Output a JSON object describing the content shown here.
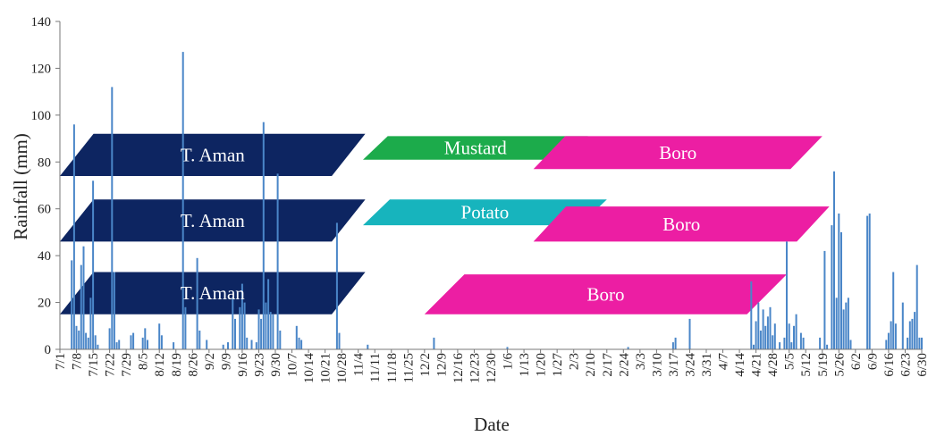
{
  "chart_data": {
    "type": "bar",
    "xlabel": "Date",
    "ylabel": "Rainfall (mm)",
    "ylim": [
      0,
      140
    ],
    "yticks": [
      0,
      20,
      40,
      60,
      80,
      100,
      120,
      140
    ],
    "grid": false,
    "x_tick_labels": [
      "7/1",
      "7/8",
      "7/15",
      "7/22",
      "7/29",
      "8/5",
      "8/12",
      "8/19",
      "8/26",
      "9/2",
      "9/9",
      "9/16",
      "9/23",
      "9/30",
      "10/7",
      "10/14",
      "10/21",
      "10/28",
      "11/4",
      "11/11",
      "11/18",
      "11/25",
      "12/2",
      "12/9",
      "12/16",
      "12/23",
      "12/30",
      "1/6",
      "1/13",
      "1/20",
      "1/27",
      "2/3",
      "2/10",
      "2/17",
      "2/24",
      "3/3",
      "3/10",
      "3/17",
      "3/24",
      "3/31",
      "4/7",
      "4/14",
      "4/21",
      "4/28",
      "5/5",
      "5/12",
      "5/19",
      "5/26",
      "6/2",
      "6/9",
      "6/16",
      "6/23",
      "6/30"
    ],
    "bar_color": "#4a86c8",
    "series": [
      {
        "values": [
          {
            "x": "7/6",
            "y": 38
          },
          {
            "x": "7/7",
            "y": 96
          },
          {
            "x": "7/8",
            "y": 10
          },
          {
            "x": "7/9",
            "y": 8
          },
          {
            "x": "7/10",
            "y": 36
          },
          {
            "x": "7/11",
            "y": 44
          },
          {
            "x": "7/12",
            "y": 7
          },
          {
            "x": "7/13",
            "y": 5
          },
          {
            "x": "7/14",
            "y": 22
          },
          {
            "x": "7/15",
            "y": 72
          },
          {
            "x": "7/16",
            "y": 6
          },
          {
            "x": "7/17",
            "y": 2
          },
          {
            "x": "7/22",
            "y": 9
          },
          {
            "x": "7/23",
            "y": 112
          },
          {
            "x": "7/24",
            "y": 33
          },
          {
            "x": "7/25",
            "y": 3
          },
          {
            "x": "7/26",
            "y": 4
          },
          {
            "x": "7/31",
            "y": 6
          },
          {
            "x": "8/1",
            "y": 7
          },
          {
            "x": "8/5",
            "y": 5
          },
          {
            "x": "8/6",
            "y": 9
          },
          {
            "x": "8/7",
            "y": 4
          },
          {
            "x": "8/12",
            "y": 11
          },
          {
            "x": "8/13",
            "y": 6
          },
          {
            "x": "8/18",
            "y": 3
          },
          {
            "x": "8/22",
            "y": 127
          },
          {
            "x": "8/23",
            "y": 18
          },
          {
            "x": "8/28",
            "y": 39
          },
          {
            "x": "8/29",
            "y": 8
          },
          {
            "x": "9/1",
            "y": 4
          },
          {
            "x": "9/8",
            "y": 2
          },
          {
            "x": "9/10",
            "y": 3
          },
          {
            "x": "9/12",
            "y": 22
          },
          {
            "x": "9/13",
            "y": 13
          },
          {
            "x": "9/15",
            "y": 18
          },
          {
            "x": "9/16",
            "y": 28
          },
          {
            "x": "9/17",
            "y": 20
          },
          {
            "x": "9/18",
            "y": 5
          },
          {
            "x": "9/20",
            "y": 4
          },
          {
            "x": "9/22",
            "y": 3
          },
          {
            "x": "9/23",
            "y": 17
          },
          {
            "x": "9/24",
            "y": 13
          },
          {
            "x": "9/25",
            "y": 97
          },
          {
            "x": "9/26",
            "y": 20
          },
          {
            "x": "9/27",
            "y": 30
          },
          {
            "x": "9/28",
            "y": 16
          },
          {
            "x": "9/29",
            "y": 15
          },
          {
            "x": "10/1",
            "y": 75
          },
          {
            "x": "10/2",
            "y": 8
          },
          {
            "x": "10/9",
            "y": 10
          },
          {
            "x": "10/10",
            "y": 5
          },
          {
            "x": "10/11",
            "y": 4
          },
          {
            "x": "10/26",
            "y": 54
          },
          {
            "x": "10/27",
            "y": 7
          },
          {
            "x": "11/8",
            "y": 2
          },
          {
            "x": "12/6",
            "y": 5
          },
          {
            "x": "1/6",
            "y": 1
          },
          {
            "x": "2/26",
            "y": 1
          },
          {
            "x": "3/16",
            "y": 3
          },
          {
            "x": "3/17",
            "y": 5
          },
          {
            "x": "3/23",
            "y": 13
          },
          {
            "x": "4/18",
            "y": 29
          },
          {
            "x": "4/19",
            "y": 2
          },
          {
            "x": "4/20",
            "y": 12
          },
          {
            "x": "4/21",
            "y": 20
          },
          {
            "x": "4/22",
            "y": 8
          },
          {
            "x": "4/23",
            "y": 17
          },
          {
            "x": "4/24",
            "y": 10
          },
          {
            "x": "4/25",
            "y": 14
          },
          {
            "x": "4/26",
            "y": 18
          },
          {
            "x": "4/27",
            "y": 6
          },
          {
            "x": "4/28",
            "y": 11
          },
          {
            "x": "4/30",
            "y": 3
          },
          {
            "x": "5/2",
            "y": 5
          },
          {
            "x": "5/3",
            "y": 46
          },
          {
            "x": "5/4",
            "y": 11
          },
          {
            "x": "5/5",
            "y": 3
          },
          {
            "x": "5/6",
            "y": 10
          },
          {
            "x": "5/7",
            "y": 15
          },
          {
            "x": "5/9",
            "y": 7
          },
          {
            "x": "5/10",
            "y": 5
          },
          {
            "x": "5/17",
            "y": 5
          },
          {
            "x": "5/19",
            "y": 42
          },
          {
            "x": "5/20",
            "y": 2
          },
          {
            "x": "5/22",
            "y": 53
          },
          {
            "x": "5/23",
            "y": 76
          },
          {
            "x": "5/24",
            "y": 22
          },
          {
            "x": "5/25",
            "y": 58
          },
          {
            "x": "5/26",
            "y": 50
          },
          {
            "x": "5/27",
            "y": 17
          },
          {
            "x": "5/28",
            "y": 20
          },
          {
            "x": "5/29",
            "y": 22
          },
          {
            "x": "5/30",
            "y": 4
          },
          {
            "x": "6/6",
            "y": 57
          },
          {
            "x": "6/7",
            "y": 58
          },
          {
            "x": "6/14",
            "y": 4
          },
          {
            "x": "6/15",
            "y": 7
          },
          {
            "x": "6/16",
            "y": 12
          },
          {
            "x": "6/17",
            "y": 33
          },
          {
            "x": "6/18",
            "y": 11
          },
          {
            "x": "6/21",
            "y": 20
          },
          {
            "x": "6/23",
            "y": 5
          },
          {
            "x": "6/24",
            "y": 12
          },
          {
            "x": "6/25",
            "y": 13
          },
          {
            "x": "6/26",
            "y": 16
          },
          {
            "x": "6/27",
            "y": 36
          },
          {
            "x": "6/28",
            "y": 5
          },
          {
            "x": "6/29",
            "y": 5
          }
        ]
      }
    ],
    "annotations": [
      {
        "label": "T. Aman",
        "color": "#0d2561",
        "start": "7/1",
        "end": "11/7",
        "y_low": 74,
        "y_high": 92
      },
      {
        "label": "Mustard",
        "color": "#1cab4b",
        "start": "11/6",
        "end": "2/9",
        "y_low": 81,
        "y_high": 91
      },
      {
        "label": "Boro",
        "color": "#ec1ea3",
        "start": "1/17",
        "end": "5/18",
        "y_low": 77,
        "y_high": 91
      },
      {
        "label": "T. Aman",
        "color": "#0d2561",
        "start": "7/1",
        "end": "11/7",
        "y_low": 46,
        "y_high": 64
      },
      {
        "label": "Potato",
        "color": "#17b4bd",
        "start": "11/6",
        "end": "2/17",
        "y_low": 53,
        "y_high": 64
      },
      {
        "label": "Boro",
        "color": "#ec1ea3",
        "start": "1/17",
        "end": "5/21",
        "y_low": 46,
        "y_high": 61
      },
      {
        "label": "T. Aman",
        "color": "#0d2561",
        "start": "7/1",
        "end": "11/7",
        "y_low": 15,
        "y_high": 33
      },
      {
        "label": "Boro",
        "color": "#ec1ea3",
        "start": "12/2",
        "end": "5/3",
        "y_low": 15,
        "y_high": 32
      }
    ]
  }
}
